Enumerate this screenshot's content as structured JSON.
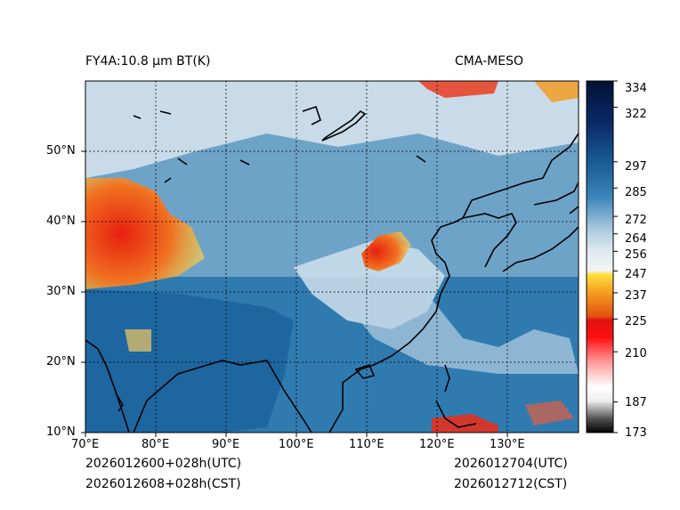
{
  "title_left": "FY4A:10.8 μm BT(K)",
  "title_right": "CMA-MESO",
  "footer": {
    "utc_forecast": "2026012600+028h(UTC)",
    "cst_forecast": "2026012608+028h(CST)",
    "utc_valid": "2026012704(UTC)",
    "cst_valid": "2026012712(CST)"
  },
  "map": {
    "lon_range": [
      70,
      140
    ],
    "lat_range": [
      10,
      60
    ],
    "lon_ticks": [
      70,
      80,
      90,
      100,
      110,
      120,
      130
    ],
    "lon_labels": [
      "70°E",
      "80°E",
      "90°E",
      "100°E",
      "110°E",
      "120°E",
      "130°E"
    ],
    "lat_ticks": [
      10,
      20,
      30,
      40,
      50
    ],
    "lat_labels": [
      "10°N",
      "20°N",
      "30°N",
      "40°N",
      "50°N"
    ]
  },
  "colorbar": {
    "range": [
      173,
      334
    ],
    "ticks": [
      334,
      322,
      297,
      285,
      272,
      264,
      256,
      247,
      237,
      225,
      210,
      187,
      173
    ]
  },
  "colors": {
    "ocean": "#1f6fa8",
    "cloud": "#dfeaf3",
    "warm_cloud": "#e84a1a",
    "coast": "#000000"
  }
}
